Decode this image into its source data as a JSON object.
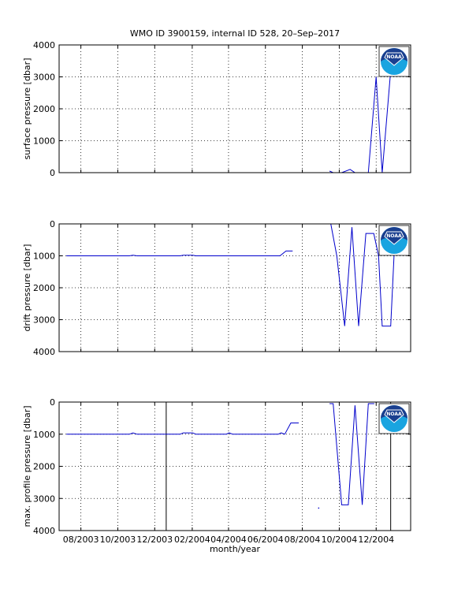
{
  "title": "WMO ID 3900159, internal ID 528, 20–Sep–2017",
  "xlabel": "month/year",
  "logo_text": "NOAA",
  "colors": {
    "series": "#0000cc",
    "axis": "#000000",
    "grid": "#000000",
    "logo_blue": "#1a3f8f",
    "logo_cyan": "#19a4e0"
  },
  "chart_data": [
    {
      "type": "line",
      "name": "surface",
      "ylabel": "surface pressure [dbar]",
      "ylim": [
        0,
        4000
      ],
      "y_reversed": false,
      "xlim": [
        "2003-06-26",
        "2005-01-27"
      ],
      "yticks": [
        0,
        1000,
        2000,
        3000,
        4000
      ],
      "xticks": [
        "08/2003",
        "10/2003",
        "12/2003",
        "02/2004",
        "04/2004",
        "06/2004",
        "08/2004",
        "10/2004",
        "12/2004"
      ],
      "grid": true,
      "segments": [
        [
          [
            "2003-07-08",
            0
          ],
          [
            "2004-09-15",
            0
          ]
        ],
        [
          [
            "2004-09-15",
            50
          ],
          [
            "2004-09-21",
            0
          ],
          [
            "2004-10-05",
            0
          ],
          [
            "2004-10-19",
            100
          ],
          [
            "2004-10-27",
            0
          ],
          [
            "2004-11-18",
            0
          ],
          [
            "2004-12-01",
            3000
          ],
          [
            "2004-12-11",
            0
          ],
          [
            "2004-12-25",
            3200
          ]
        ]
      ],
      "markers": []
    },
    {
      "type": "line",
      "name": "drift",
      "ylabel": "drift pressure [dbar]",
      "ylim": [
        0,
        4000
      ],
      "y_reversed": true,
      "xlim": [
        "2003-06-26",
        "2005-01-27"
      ],
      "yticks": [
        0,
        1000,
        2000,
        3000,
        4000
      ],
      "xticks": [
        "08/2003",
        "10/2003",
        "12/2003",
        "02/2004",
        "04/2004",
        "06/2004",
        "08/2004",
        "10/2004",
        "12/2004"
      ],
      "grid": true,
      "segments": [
        [
          [
            "2003-07-08",
            1000
          ],
          [
            "2003-10-20",
            1000
          ],
          [
            "2003-10-26",
            980
          ],
          [
            "2003-11-02",
            1000
          ],
          [
            "2004-01-12",
            1000
          ],
          [
            "2004-01-17",
            980
          ],
          [
            "2004-02-02",
            980
          ],
          [
            "2004-02-07",
            1000
          ],
          [
            "2004-06-25",
            1000
          ],
          [
            "2004-07-05",
            850
          ],
          [
            "2004-07-16",
            850
          ]
        ],
        [
          [
            "2004-09-17",
            0
          ],
          [
            "2004-09-27",
            1000
          ],
          [
            "2004-10-10",
            3200
          ],
          [
            "2004-10-22",
            100
          ],
          [
            "2004-11-02",
            3200
          ],
          [
            "2004-11-14",
            300
          ],
          [
            "2004-11-27",
            300
          ],
          [
            "2004-12-05",
            1000
          ],
          [
            "2004-12-11",
            3200
          ],
          [
            "2004-12-25",
            3200
          ],
          [
            "2004-12-31",
            800
          ]
        ]
      ],
      "markers": []
    },
    {
      "type": "line",
      "name": "max_profile",
      "ylabel": "max. profile pressure [dbar]",
      "ylim": [
        0,
        4000
      ],
      "y_reversed": true,
      "xlim": [
        "2003-06-26",
        "2005-01-27"
      ],
      "yticks": [
        0,
        1000,
        2000,
        3000,
        4000
      ],
      "xticks": [
        "08/2003",
        "10/2003",
        "12/2003",
        "02/2004",
        "04/2004",
        "06/2004",
        "08/2004",
        "10/2004",
        "12/2004"
      ],
      "grid": true,
      "vlines": [
        "2003-12-20",
        "2004-12-25"
      ],
      "segments": [
        [
          [
            "2003-07-08",
            1000
          ],
          [
            "2003-10-20",
            1000
          ],
          [
            "2003-10-26",
            960
          ],
          [
            "2003-11-02",
            1000
          ],
          [
            "2004-01-12",
            1000
          ],
          [
            "2004-01-17",
            960
          ],
          [
            "2004-02-02",
            960
          ],
          [
            "2004-02-07",
            1000
          ],
          [
            "2004-03-28",
            1000
          ],
          [
            "2004-04-02",
            960
          ],
          [
            "2004-04-08",
            1000
          ],
          [
            "2004-06-22",
            1000
          ],
          [
            "2004-06-27",
            960
          ],
          [
            "2004-07-03",
            1000
          ],
          [
            "2004-07-13",
            650
          ],
          [
            "2004-07-26",
            650
          ]
        ],
        [
          [
            "2004-09-15",
            50
          ],
          [
            "2004-09-21",
            50
          ],
          [
            "2004-10-05",
            3200
          ],
          [
            "2004-10-16",
            3200
          ],
          [
            "2004-10-27",
            100
          ],
          [
            "2004-11-08",
            3200
          ],
          [
            "2004-11-18",
            50
          ],
          [
            "2004-11-28",
            50
          ]
        ]
      ],
      "markers": [
        [
          "2004-08-28",
          3300
        ]
      ]
    }
  ]
}
